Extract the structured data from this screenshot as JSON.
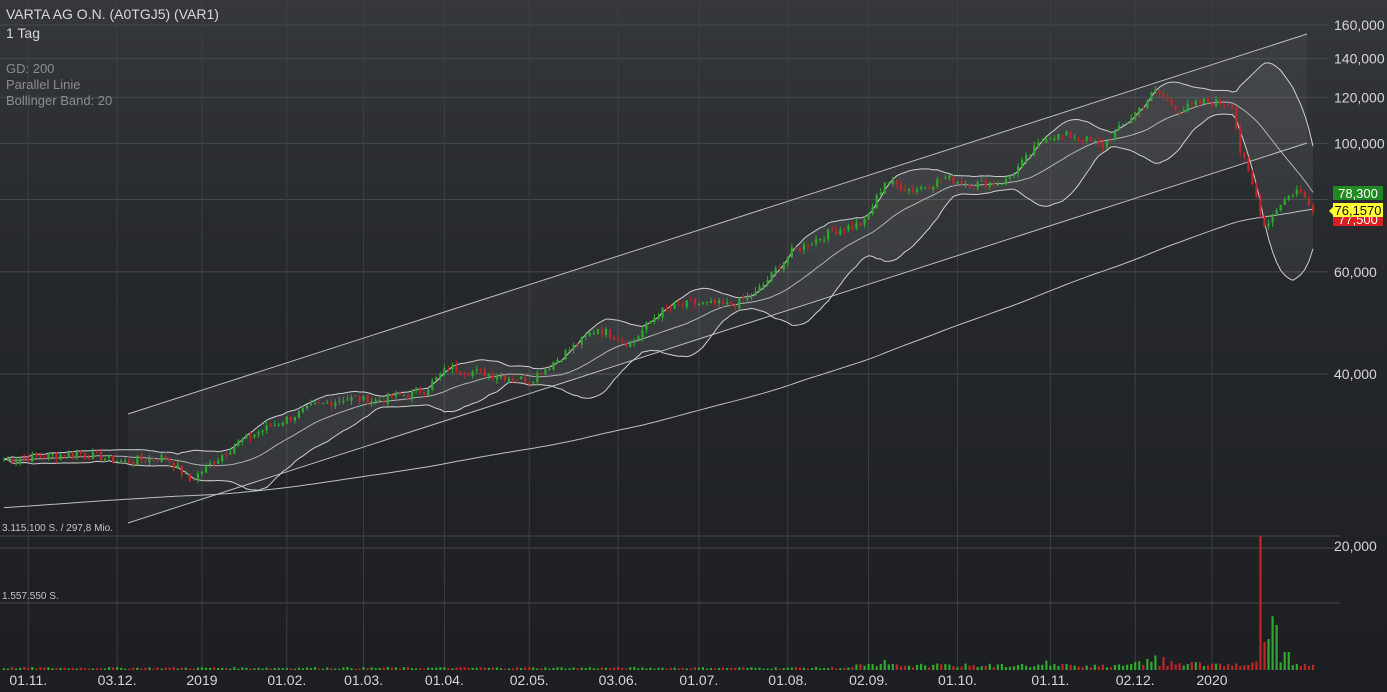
{
  "header": {
    "title": "VARTA AG O.N. (A0TGJ5) (VAR1)",
    "interval": "1 Tag"
  },
  "indicators": [
    "GD: 200",
    "Parallel Linie",
    "Bollinger Band: 20"
  ],
  "volume_labels": {
    "top": "3.115.100 S. / 297,8 Mio.",
    "mid": "1.557.550 S."
  },
  "price_badges": [
    {
      "label": "78,300",
      "bg": "#1f8a1f",
      "fg": "#ffffff"
    },
    {
      "label": "76,1570",
      "bg": "#ffff33",
      "fg": "#111111"
    },
    {
      "label": "77,500",
      "bg": "#d81e1e",
      "fg": "#ffffff"
    }
  ],
  "colors": {
    "up": "#2ea82e",
    "down": "#c0252a",
    "channel": "#bdbdbd",
    "bollinger": "#cfcfcf",
    "ma200": "#bfbfbf",
    "grid": "#45484c"
  },
  "chart_data": {
    "type": "candlestick",
    "title": "VARTA AG O.N. (A0TGJ5) (VAR1)",
    "interval": "1 Tag",
    "y_scale": "log",
    "ylim": [
      18000,
      165000
    ],
    "y_ticks": [
      "160,000",
      "140,000",
      "120,000",
      "100,000",
      "60,000",
      "40,000"
    ],
    "volume_ticks": [
      "20,000"
    ],
    "x_ticks": [
      "01.11.",
      "03.12.",
      "2019",
      "01.02.",
      "01.03.",
      "01.04.",
      "02.05.",
      "03.06.",
      "01.07.",
      "01.08.",
      "02.09.",
      "01.10.",
      "01.11.",
      "02.12.",
      "2020"
    ],
    "x_tick_index": [
      6,
      28,
      49,
      70,
      89,
      109,
      130,
      152,
      172,
      194,
      214,
      236,
      259,
      280,
      299
    ],
    "volume_max": 3115100,
    "close_anchors": [
      {
        "i": 0,
        "v": 28.5
      },
      {
        "i": 10,
        "v": 28.8
      },
      {
        "i": 18,
        "v": 29.3
      },
      {
        "i": 30,
        "v": 28.2
      },
      {
        "i": 40,
        "v": 28.8
      },
      {
        "i": 46,
        "v": 26.2
      },
      {
        "i": 52,
        "v": 28.3
      },
      {
        "i": 58,
        "v": 30.5
      },
      {
        "i": 66,
        "v": 32.5
      },
      {
        "i": 76,
        "v": 35.0
      },
      {
        "i": 84,
        "v": 36.3
      },
      {
        "i": 92,
        "v": 36.0
      },
      {
        "i": 104,
        "v": 37.5
      },
      {
        "i": 110,
        "v": 41.0
      },
      {
        "i": 120,
        "v": 40.0
      },
      {
        "i": 130,
        "v": 39.0
      },
      {
        "i": 140,
        "v": 44.0
      },
      {
        "i": 147,
        "v": 48.0
      },
      {
        "i": 155,
        "v": 45.0
      },
      {
        "i": 162,
        "v": 51.0
      },
      {
        "i": 170,
        "v": 53.0
      },
      {
        "i": 180,
        "v": 52.5
      },
      {
        "i": 186,
        "v": 55.0
      },
      {
        "i": 195,
        "v": 65.0
      },
      {
        "i": 205,
        "v": 70.5
      },
      {
        "i": 213,
        "v": 73.0
      },
      {
        "i": 218,
        "v": 86.0
      },
      {
        "i": 225,
        "v": 83.0
      },
      {
        "i": 233,
        "v": 87.0
      },
      {
        "i": 240,
        "v": 85.0
      },
      {
        "i": 248,
        "v": 86.0
      },
      {
        "i": 258,
        "v": 103.0
      },
      {
        "i": 265,
        "v": 103.0
      },
      {
        "i": 272,
        "v": 99.0
      },
      {
        "i": 279,
        "v": 111.0
      },
      {
        "i": 285,
        "v": 123.0
      },
      {
        "i": 291,
        "v": 114.0
      },
      {
        "i": 297,
        "v": 118.0
      },
      {
        "i": 304,
        "v": 117.0
      },
      {
        "i": 306,
        "v": 97.0
      },
      {
        "i": 310,
        "v": 81.0
      },
      {
        "i": 312,
        "v": 72.0
      },
      {
        "i": 316,
        "v": 79.0
      },
      {
        "i": 320,
        "v": 83.0
      },
      {
        "i": 324,
        "v": 78.3
      }
    ],
    "last": {
      "close": 76.157,
      "open": 78.3,
      "low": 77.5
    },
    "spike_volumes": [
      {
        "i": 311,
        "v": 3115100
      },
      {
        "i": 314,
        "v": 1250000
      },
      {
        "i": 315,
        "v": 1050000
      },
      {
        "i": 313,
        "v": 720000
      },
      {
        "i": 312,
        "v": 650000
      },
      {
        "i": 317,
        "v": 420000
      },
      {
        "i": 318,
        "v": 420000
      },
      {
        "i": 285,
        "v": 340000
      },
      {
        "i": 287,
        "v": 300000
      },
      {
        "i": 258,
        "v": 220000
      },
      {
        "i": 218,
        "v": 230000
      },
      {
        "i": 283,
        "v": 260000
      }
    ]
  }
}
